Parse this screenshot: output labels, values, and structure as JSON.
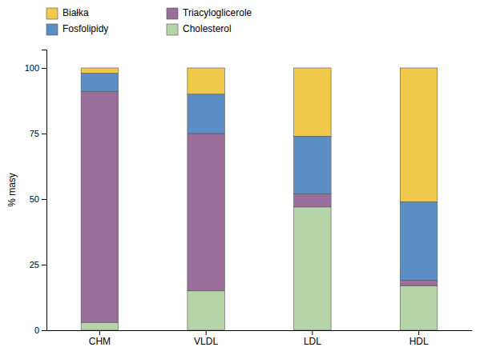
{
  "chart_data": {
    "type": "bar",
    "stacked": true,
    "categories": [
      "CHM",
      "VLDL",
      "LDL",
      "HDL"
    ],
    "series": [
      {
        "name": "Cholesterol",
        "color": "#b5d4a8",
        "values": [
          3,
          15,
          47,
          17
        ]
      },
      {
        "name": "Triacyloglicerole",
        "color": "#9b6d9b",
        "values": [
          88,
          60,
          5,
          2
        ]
      },
      {
        "name": "Fosfolipidy",
        "color": "#5b8ec4",
        "values": [
          7,
          15,
          22,
          30
        ]
      },
      {
        "name": "Białka",
        "color": "#f0c84a",
        "values": [
          2,
          10,
          26,
          51
        ]
      }
    ],
    "ylabel": "% masy",
    "ylim": [
      0,
      107
    ],
    "yticks": [
      0,
      25,
      50,
      75,
      100
    ],
    "grid": false,
    "legend": "upper left"
  }
}
